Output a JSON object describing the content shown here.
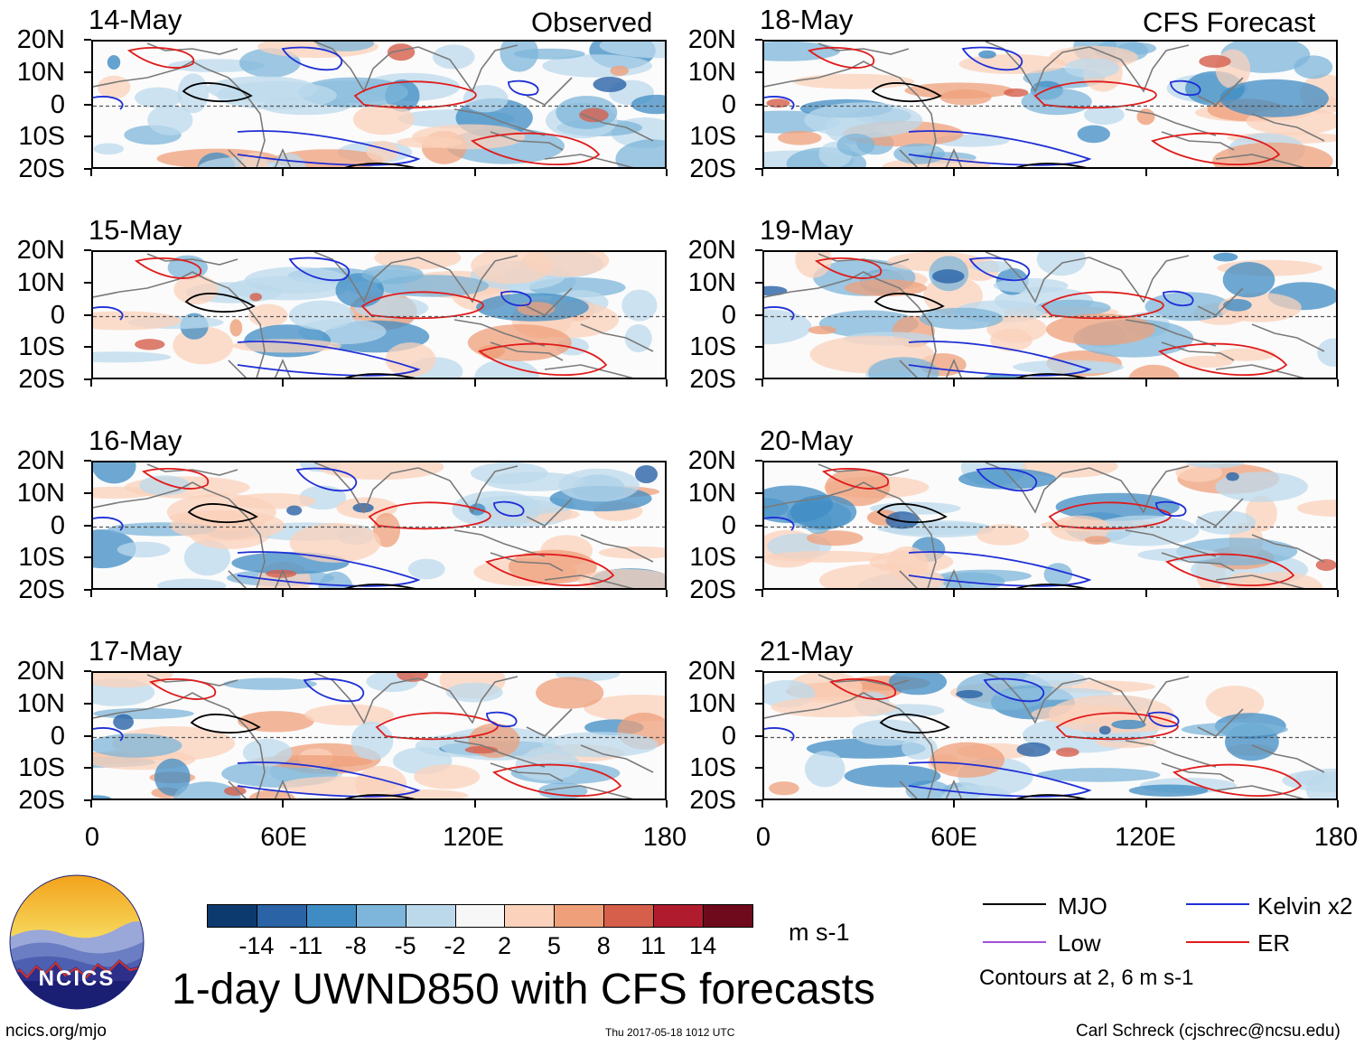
{
  "figure": {
    "title": "1-day UWND850 with CFS forecasts",
    "left_header": "Observed",
    "right_header": "CFS Forecast",
    "units": "m s-1",
    "footer_left": "ncics.org/mjo",
    "footer_center": "Thu 2017-05-18 1012 UTC",
    "footer_right": "Carl Schreck (cjschrec@ncsu.edu)",
    "logo_text": "NCICS",
    "contours_note": "Contours at 2, 6 m s-1"
  },
  "legend": {
    "items": [
      {
        "label": "MJO",
        "color": "#000000"
      },
      {
        "label": "Kelvin x2",
        "color": "#1f2fd6"
      },
      {
        "label": "Low",
        "color": "#a24fd8"
      },
      {
        "label": "ER",
        "color": "#e01b1b"
      }
    ]
  },
  "colors": {
    "contour_black": "#000000",
    "contour_blue": "#1f2fd6",
    "contour_red": "#e01b1b",
    "land": "#7a7a7a"
  },
  "chart_data": {
    "type": "heatmap",
    "variable": "850-hPa zonal wind anomaly",
    "xlabel": "",
    "ylabel": "",
    "x_ticks": [
      "0",
      "60E",
      "120E",
      "180"
    ],
    "x_range": [
      0,
      180
    ],
    "y_ticks": [
      "20N",
      "10N",
      "0",
      "10S",
      "20S"
    ],
    "y_range": [
      -20,
      20
    ],
    "colorbar": {
      "levels": [
        "-14",
        "-11",
        "-8",
        "-5",
        "-2",
        "2",
        "5",
        "8",
        "11",
        "14"
      ],
      "colors": [
        "#0d3a6e",
        "#2a63a6",
        "#3f8cc4",
        "#7db6da",
        "#bcd9ec",
        "#f7f7f7",
        "#fbd2bb",
        "#efa07b",
        "#d65f4c",
        "#b01c2e",
        "#6e0a1c"
      ]
    },
    "panels": [
      {
        "date": "14-May",
        "source": "Observed"
      },
      {
        "date": "15-May",
        "source": "Observed"
      },
      {
        "date": "16-May",
        "source": "Observed"
      },
      {
        "date": "17-May",
        "source": "Observed"
      },
      {
        "date": "18-May",
        "source": "CFS Forecast"
      },
      {
        "date": "19-May",
        "source": "CFS Forecast"
      },
      {
        "date": "20-May",
        "source": "CFS Forecast"
      },
      {
        "date": "21-May",
        "source": "CFS Forecast"
      }
    ]
  }
}
